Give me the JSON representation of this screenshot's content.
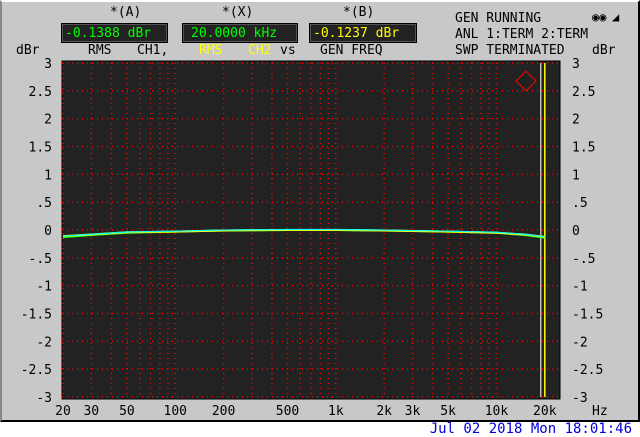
{
  "readouts": {
    "a": {
      "label": "*(A)",
      "value": "-0.1388 dBr",
      "color": "#00ff00"
    },
    "x": {
      "label": "*(X)",
      "value": "20.0000 kHz",
      "color": "#00ff00"
    },
    "b": {
      "label": "*(B)",
      "value": "-0.1237 dBr",
      "color": "#ffff00"
    }
  },
  "captions": {
    "rms1": "RMS",
    "ch1": "CH1,",
    "rms2": "RMS",
    "ch2": "CH2",
    "vs": "vs",
    "gen_freq": "GEN FREQ"
  },
  "status": {
    "line1": "GEN RUNNING",
    "line2": "ANL 1:TERM 2:TERM",
    "line3": "SWP TERMINATED"
  },
  "icons": [
    "headphones-icon",
    "speaker-muted-icon",
    "rs-logo-icon"
  ],
  "timestamp": "Jul 02 2018 Mon 18:01:46",
  "chart_data": {
    "type": "line",
    "xlabel": "Hz",
    "ylabel_left": "dBr",
    "ylabel_right": "dBr",
    "xscale": "log",
    "xlim": [
      20,
      25000
    ],
    "ylim": [
      -3,
      3
    ],
    "x_ticks": [
      20,
      30,
      50,
      100,
      200,
      500,
      1000,
      2000,
      3000,
      5000,
      10000,
      20000
    ],
    "x_tick_labels": [
      "20",
      "30",
      "50",
      "100",
      "200",
      "500",
      "1k",
      "2k",
      "3k",
      "5k",
      "10k",
      "20k"
    ],
    "y_ticks": [
      3,
      2.5,
      2,
      1.5,
      1,
      0.5,
      0,
      -0.5,
      -1,
      -1.5,
      -2,
      -2.5,
      -3
    ],
    "y_tick_labels": [
      "3",
      "2.5",
      "2",
      "1.5",
      "1",
      ".5",
      "0",
      "-.5",
      "-1",
      "-1.5",
      "-2",
      "-2.5",
      "-3"
    ],
    "grid": true,
    "x": [
      20,
      30,
      50,
      100,
      200,
      500,
      1000,
      2000,
      5000,
      10000,
      15000,
      20000
    ],
    "series": [
      {
        "values": [
          -0.13,
          -0.09,
          -0.05,
          -0.03,
          -0.01,
          0,
          0,
          -0.01,
          -0.03,
          -0.05,
          -0.09,
          -0.139
        ],
        "color": "#00ff00"
      },
      {
        "values": [
          -0.11,
          -0.08,
          -0.04,
          -0.03,
          -0.01,
          0,
          0,
          -0.01,
          -0.03,
          -0.05,
          -0.08,
          -0.124
        ],
        "color": "#ffff00"
      }
    ],
    "cursor_freq": 20000,
    "colors": {
      "background": "#222222",
      "grid": "#ff0000",
      "overlap": "#00ffff"
    }
  }
}
